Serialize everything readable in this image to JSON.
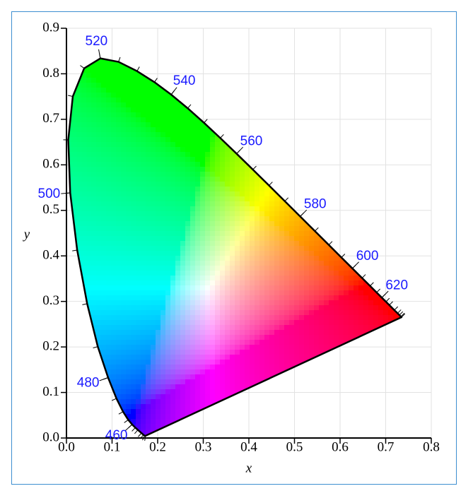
{
  "chart_data": {
    "type": "line",
    "xlabel": "x",
    "ylabel": "y",
    "xlim": [
      0,
      0.8
    ],
    "ylim": [
      0,
      0.9
    ],
    "xticks": [
      {
        "value": 0,
        "label": "0.0"
      },
      0.1,
      0.2,
      0.3,
      0.4,
      0.5,
      0.6,
      0.7,
      0.8
    ],
    "yticks": [
      {
        "value": 0,
        "label": "0.0"
      },
      0.1,
      0.2,
      0.3,
      0.4,
      0.5,
      0.6,
      0.7,
      0.8,
      0.9
    ],
    "grid": true,
    "series": [
      {
        "color": "#000000",
        "wavelengths": [
          400,
          420,
          430,
          440,
          450,
          455,
          460,
          465,
          470,
          475,
          480,
          485,
          490,
          495,
          500,
          505,
          510,
          515,
          520,
          525,
          530,
          535,
          540,
          545,
          550,
          555,
          560,
          565,
          570,
          575,
          580,
          585,
          590,
          595,
          600,
          605,
          610,
          615,
          620,
          625,
          630,
          640,
          650,
          660,
          680,
          700
        ],
        "x": [
          0.1733,
          0.1714,
          0.1689,
          0.1644,
          0.1566,
          0.151,
          0.144,
          0.1355,
          0.1241,
          0.1096,
          0.0913,
          0.0687,
          0.0454,
          0.0235,
          0.0082,
          0.0039,
          0.0139,
          0.0389,
          0.0743,
          0.1142,
          0.1547,
          0.1929,
          0.2296,
          0.2658,
          0.3016,
          0.3373,
          0.3731,
          0.4087,
          0.4441,
          0.4788,
          0.5125,
          0.5448,
          0.5752,
          0.6029,
          0.627,
          0.6482,
          0.6658,
          0.6801,
          0.6915,
          0.7006,
          0.7079,
          0.719,
          0.726,
          0.73,
          0.7334,
          0.7347
        ],
        "values": [
          0.0048,
          0.0051,
          0.0069,
          0.0109,
          0.0177,
          0.0227,
          0.0297,
          0.0399,
          0.0578,
          0.0868,
          0.1327,
          0.2007,
          0.295,
          0.4127,
          0.5384,
          0.6548,
          0.7502,
          0.812,
          0.8338,
          0.8262,
          0.8059,
          0.7816,
          0.7543,
          0.7243,
          0.6923,
          0.6589,
          0.6245,
          0.5896,
          0.5547,
          0.5202,
          0.4866,
          0.4544,
          0.4242,
          0.3965,
          0.3725,
          0.3514,
          0.334,
          0.3197,
          0.3083,
          0.2993,
          0.292,
          0.2809,
          0.274,
          0.27,
          0.2666,
          0.2653
        ]
      }
    ],
    "wavelength_labels": [
      460,
      480,
      500,
      520,
      540,
      560,
      580,
      600,
      620
    ],
    "label_color": "#1a1aff"
  }
}
